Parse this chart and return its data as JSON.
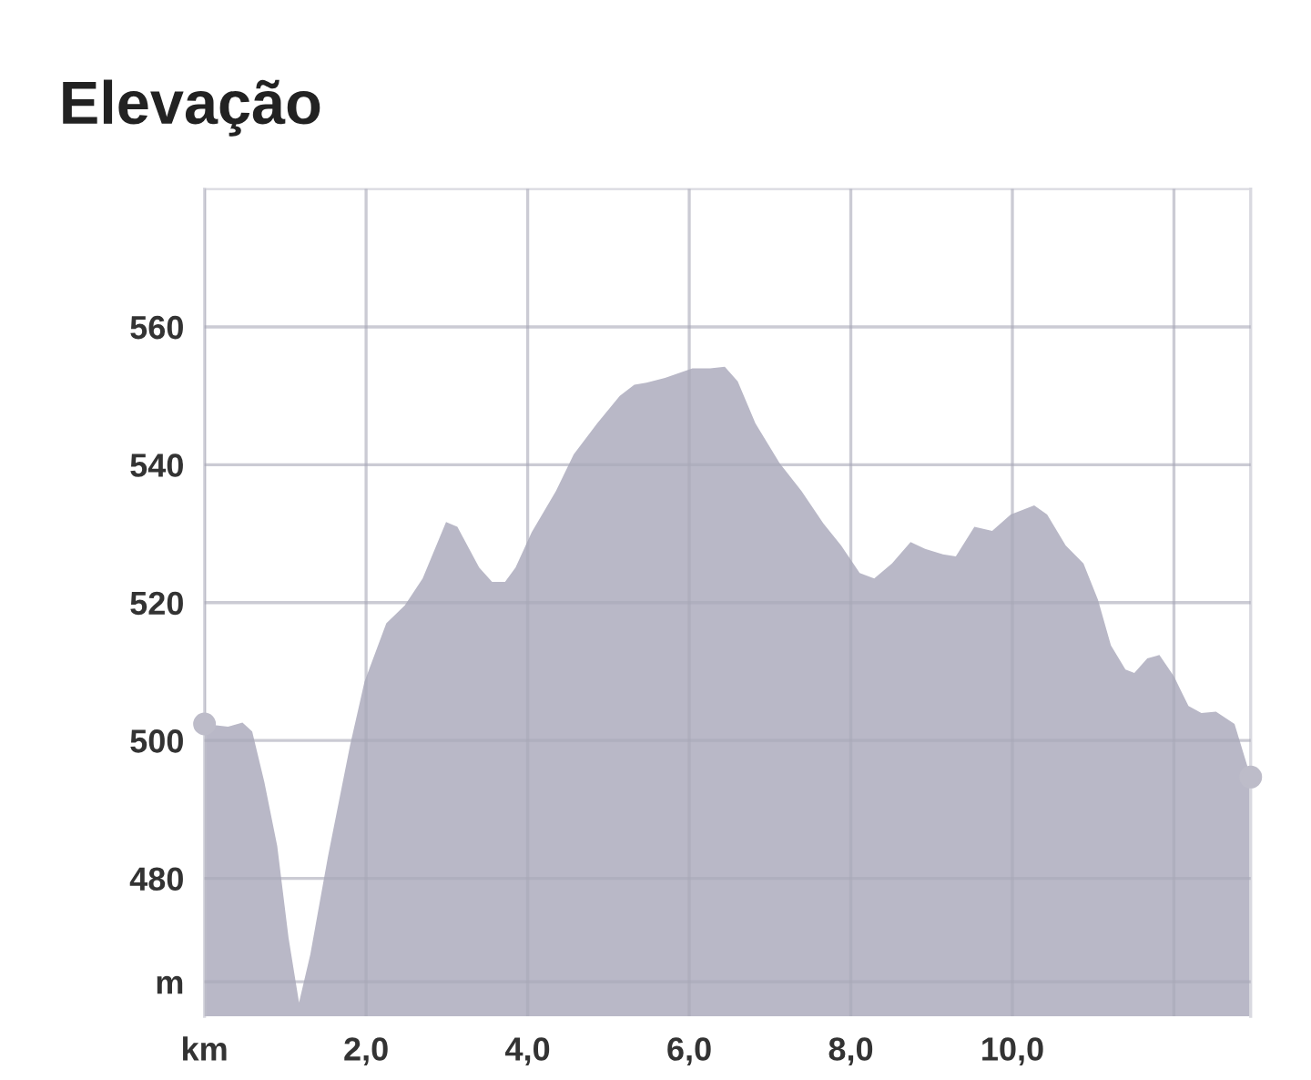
{
  "chart_data": {
    "type": "area",
    "title": "Elevação",
    "xlim": [
      0,
      12.95
    ],
    "ylim": [
      460,
      580
    ],
    "xticks": [
      {
        "value": 0,
        "label": "km"
      },
      {
        "value": 2,
        "label": "2,0"
      },
      {
        "value": 4,
        "label": "4,0"
      },
      {
        "value": 6,
        "label": "6,0"
      },
      {
        "value": 8,
        "label": "8,0"
      },
      {
        "value": 10,
        "label": "10,0"
      },
      {
        "value": 12,
        "label": null
      }
    ],
    "yticks": [
      {
        "value": 465,
        "label": "m"
      },
      480,
      500,
      520,
      540,
      560
    ],
    "grid": true,
    "series": [
      {
        "color": "#b9b8c7",
        "x": [
          0,
          0.29,
          0.47,
          0.59,
          0.74,
          0.9,
          1.04,
          1.17,
          1.31,
          1.53,
          1.8,
          1.98,
          2.25,
          2.48,
          2.7,
          2.99,
          3.13,
          3.4,
          3.56,
          3.72,
          3.85,
          4.05,
          4.35,
          4.57,
          4.86,
          5.14,
          5.32,
          5.47,
          5.7,
          6.04,
          6.26,
          6.44,
          6.6,
          6.82,
          7.12,
          7.39,
          7.66,
          7.88,
          8.11,
          8.29,
          8.51,
          8.74,
          8.92,
          9.14,
          9.3,
          9.53,
          9.75,
          9.98,
          10.27,
          10.43,
          10.66,
          10.88,
          11.06,
          11.22,
          11.4,
          11.51,
          11.67,
          11.82,
          12.0,
          12.18,
          12.34,
          12.52,
          12.75,
          12.95
        ],
        "values": [
          502.4,
          502,
          502.6,
          501.3,
          494,
          484.7,
          471.4,
          462,
          469,
          483.3,
          499.2,
          508.5,
          517,
          519.6,
          523.5,
          531.7,
          531,
          525.1,
          523,
          523,
          525.1,
          530.2,
          536.2,
          541.5,
          546,
          550,
          551.6,
          551.9,
          552.6,
          554,
          554,
          554.2,
          552.1,
          546,
          540.2,
          536.2,
          531.5,
          528.3,
          524.3,
          523.5,
          525.7,
          528.8,
          527.8,
          527,
          526.7,
          531,
          530.4,
          532.8,
          534.1,
          532.8,
          528.3,
          525.7,
          520.4,
          513.8,
          510.3,
          509.8,
          511.9,
          512.4,
          509.3,
          505,
          504,
          504.2,
          502.4,
          494.7
        ]
      },
      {
        "type": "scatter",
        "color": "#bdbcc9",
        "marker": "circle",
        "x": [
          0,
          12.95
        ],
        "values": [
          502.4,
          494.7
        ]
      }
    ]
  }
}
